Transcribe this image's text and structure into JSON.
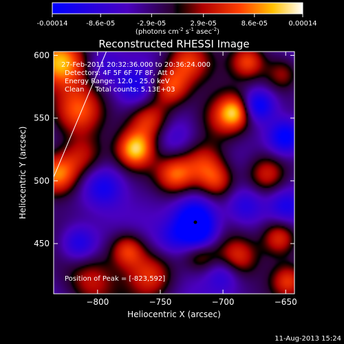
{
  "chart_data": {
    "type": "heatmap",
    "title": "Reconstructed RHESSI Image",
    "colorbar": {
      "ticks": [
        "-0.00014",
        "-8.6e-05",
        "-2.9e-05",
        "2.9e-05",
        "8.6e-05",
        "0.00014"
      ],
      "tick_values": [
        -0.00014,
        -8.6e-05,
        -2.9e-05,
        2.9e-05,
        8.6e-05,
        0.00014
      ],
      "range": [
        -0.00014,
        0.00014
      ],
      "unit_text": "(photons cm",
      "unit_exp1": "-2",
      "unit_mid": " s",
      "unit_exp2": "-1",
      "unit_mid2": " asec",
      "unit_exp3": "-2",
      "unit_end": ")"
    },
    "xlabel": "Heliocentric X (arcsec)",
    "ylabel": "Heliocentric Y (arcsec)",
    "xlim": [
      -835,
      -643
    ],
    "ylim": [
      410,
      603
    ],
    "xticks": [
      -800,
      -750,
      -700,
      -650
    ],
    "xtick_labels": [
      "−800",
      "−750",
      "−700",
      "−650"
    ],
    "yticks": [
      450,
      500,
      550,
      600
    ],
    "ytick_labels": [
      "450",
      "500",
      "550",
      "600"
    ],
    "info": [
      "27-Feb-2011 20:32:36.000 to 20:36:24.000",
      "Detectors: 4F 5F 6F 7F 8F, Att 0",
      "Energy Range: 12.0 - 25.0 keV",
      "Clean     Total counts: 5.13E+03"
    ],
    "peak_text": "Position of Peak = [-823,592]",
    "peak": [
      -823,
      592
    ],
    "limb_line": [
      [
        -835,
        503
      ],
      [
        -793,
        603
      ]
    ],
    "marker": [
      -722,
      467
    ],
    "blobs": [
      {
        "x": -830,
        "y": 595,
        "v": 1.0,
        "r": 14
      },
      {
        "x": -832,
        "y": 505,
        "v": 1.0,
        "r": 12
      },
      {
        "x": -815,
        "y": 555,
        "v": 0.7,
        "r": 14
      },
      {
        "x": -812,
        "y": 520,
        "v": 0.55,
        "r": 12
      },
      {
        "x": -770,
        "y": 525,
        "v": 0.95,
        "r": 10
      },
      {
        "x": -758,
        "y": 548,
        "v": 0.7,
        "r": 12
      },
      {
        "x": -742,
        "y": 575,
        "v": 0.8,
        "r": 11
      },
      {
        "x": -728,
        "y": 595,
        "v": 0.7,
        "r": 12
      },
      {
        "x": -700,
        "y": 548,
        "v": 0.6,
        "r": 14
      },
      {
        "x": -690,
        "y": 555,
        "v": 0.75,
        "r": 9
      },
      {
        "x": -738,
        "y": 505,
        "v": 0.75,
        "r": 11
      },
      {
        "x": -715,
        "y": 515,
        "v": 0.65,
        "r": 12
      },
      {
        "x": -705,
        "y": 500,
        "v": 0.55,
        "r": 10
      },
      {
        "x": -776,
        "y": 445,
        "v": 0.75,
        "r": 10
      },
      {
        "x": -758,
        "y": 425,
        "v": 0.65,
        "r": 13
      },
      {
        "x": -718,
        "y": 442,
        "v": 0.55,
        "r": 10
      },
      {
        "x": -688,
        "y": 440,
        "v": 0.6,
        "r": 11
      },
      {
        "x": -655,
        "y": 455,
        "v": 0.7,
        "r": 10
      },
      {
        "x": -648,
        "y": 420,
        "v": 0.55,
        "r": 9
      },
      {
        "x": -665,
        "y": 505,
        "v": 0.6,
        "r": 11
      },
      {
        "x": -805,
        "y": 420,
        "v": 0.5,
        "r": 14
      },
      {
        "x": -680,
        "y": 595,
        "v": 0.6,
        "r": 9
      },
      {
        "x": -652,
        "y": 585,
        "v": 0.5,
        "r": 10
      },
      {
        "x": -722,
        "y": 470,
        "v": -1.0,
        "r": 12
      },
      {
        "x": -720,
        "y": 455,
        "v": -0.7,
        "r": 10
      },
      {
        "x": -650,
        "y": 535,
        "v": -0.9,
        "r": 10
      },
      {
        "x": -672,
        "y": 560,
        "v": -0.8,
        "r": 9
      },
      {
        "x": -815,
        "y": 450,
        "v": -0.6,
        "r": 10
      },
      {
        "x": -795,
        "y": 495,
        "v": -0.55,
        "r": 11
      },
      {
        "x": -742,
        "y": 535,
        "v": -0.4,
        "r": 12
      },
      {
        "x": -770,
        "y": 575,
        "v": -0.45,
        "r": 11
      },
      {
        "x": -795,
        "y": 590,
        "v": -0.35,
        "r": 10
      },
      {
        "x": -683,
        "y": 480,
        "v": -0.45,
        "r": 10
      },
      {
        "x": -650,
        "y": 480,
        "v": -0.4,
        "r": 9
      },
      {
        "x": -740,
        "y": 455,
        "v": -0.35,
        "r": 9
      },
      {
        "x": -700,
        "y": 425,
        "v": -0.35,
        "r": 9
      }
    ]
  },
  "footer": {
    "timestamp": "11-Aug-2013 15:24"
  }
}
